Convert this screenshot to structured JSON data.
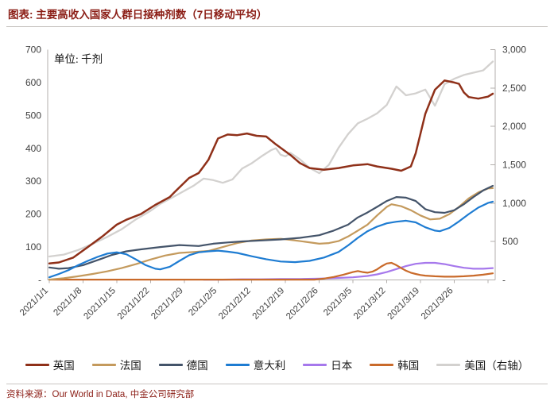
{
  "header": {
    "title": "图表: 主要高收入国家人群日接种剂数（7日移动平均）"
  },
  "footer": {
    "source": "资料来源：Our World in Data, 中金公司研究部"
  },
  "chart_data": {
    "type": "line",
    "title": "主要高收入国家人群日接种剂数（7日移动平均）",
    "unit_label": "单位: 千剂",
    "left_axis": {
      "unit": "千剂 (thousand doses)",
      "min": 0,
      "max": 700,
      "tick_values": [
        700,
        600,
        500,
        400,
        300,
        200,
        100,
        0
      ],
      "tick_labels": [
        "700",
        "600",
        "500",
        "400",
        "300",
        "200",
        "100",
        "-"
      ]
    },
    "right_axis": {
      "unit": "千剂 (thousand doses, 美国)",
      "min": 0,
      "max": 3000,
      "tick_values": [
        3000,
        2500,
        2000,
        1500,
        1000,
        500,
        0
      ],
      "tick_labels": [
        "3,000",
        "2,500",
        "2,000",
        "1,500",
        "1,000",
        "500",
        "-"
      ]
    },
    "x_axis": {
      "start_date": "2021/1/1",
      "range_days": [
        0,
        92
      ],
      "tick_step_days": 7,
      "tick_labels": [
        "2021/1/1",
        "2021/1/8",
        "2021/1/15",
        "2021/1/22",
        "2021/1/29",
        "2021/2/5",
        "2021/2/12",
        "2021/2/19",
        "2021/2/26",
        "2021/3/5",
        "2021/3/12",
        "2021/3/19",
        "2021/3/26"
      ]
    },
    "grid": "off",
    "legend_position": "bottom",
    "series": [
      {
        "key": "uk",
        "name": "英国",
        "axis": "left",
        "color": "#8f3019",
        "width": 2.5,
        "points": [
          [
            0,
            50
          ],
          [
            2,
            53
          ],
          [
            5,
            68
          ],
          [
            8,
            100
          ],
          [
            11,
            132
          ],
          [
            14,
            168
          ],
          [
            16,
            183
          ],
          [
            19,
            200
          ],
          [
            22,
            228
          ],
          [
            25,
            252
          ],
          [
            26,
            267
          ],
          [
            29,
            310
          ],
          [
            31,
            325
          ],
          [
            33,
            365
          ],
          [
            35,
            430
          ],
          [
            37,
            442
          ],
          [
            39,
            440
          ],
          [
            41,
            445
          ],
          [
            43,
            438
          ],
          [
            45,
            436
          ],
          [
            47,
            412
          ],
          [
            50,
            380
          ],
          [
            52,
            355
          ],
          [
            54,
            340
          ],
          [
            57,
            335
          ],
          [
            60,
            340
          ],
          [
            63,
            348
          ],
          [
            66,
            352
          ],
          [
            68,
            345
          ],
          [
            71,
            338
          ],
          [
            73,
            332
          ],
          [
            75,
            345
          ],
          [
            76,
            385
          ],
          [
            78,
            505
          ],
          [
            80,
            578
          ],
          [
            82,
            606
          ],
          [
            84,
            600
          ],
          [
            85,
            596
          ],
          [
            86,
            570
          ],
          [
            87,
            556
          ],
          [
            89,
            551
          ],
          [
            91,
            557
          ],
          [
            92,
            566
          ]
        ]
      },
      {
        "key": "france",
        "name": "法国",
        "axis": "left",
        "color": "#c49a5d",
        "width": 2.2,
        "points": [
          [
            0,
            1
          ],
          [
            3,
            5
          ],
          [
            6,
            11
          ],
          [
            9,
            18
          ],
          [
            12,
            26
          ],
          [
            15,
            36
          ],
          [
            18,
            48
          ],
          [
            21,
            62
          ],
          [
            24,
            74
          ],
          [
            27,
            82
          ],
          [
            30,
            85
          ],
          [
            33,
            88
          ],
          [
            36,
            100
          ],
          [
            39,
            112
          ],
          [
            42,
            120
          ],
          [
            45,
            123
          ],
          [
            48,
            125
          ],
          [
            50,
            122
          ],
          [
            53,
            116
          ],
          [
            56,
            110
          ],
          [
            58,
            112
          ],
          [
            60,
            118
          ],
          [
            62,
            132
          ],
          [
            64,
            150
          ],
          [
            66,
            168
          ],
          [
            68,
            196
          ],
          [
            70,
            222
          ],
          [
            71,
            230
          ],
          [
            73,
            224
          ],
          [
            75,
            212
          ],
          [
            77,
            196
          ],
          [
            79,
            184
          ],
          [
            81,
            186
          ],
          [
            83,
            200
          ],
          [
            85,
            222
          ],
          [
            87,
            248
          ],
          [
            89,
            266
          ],
          [
            91,
            278
          ],
          [
            92,
            279
          ]
        ]
      },
      {
        "key": "germany",
        "name": "德国",
        "axis": "left",
        "color": "#44546a",
        "width": 2.2,
        "points": [
          [
            0,
            38
          ],
          [
            2,
            34
          ],
          [
            4,
            36
          ],
          [
            7,
            45
          ],
          [
            10,
            60
          ],
          [
            13,
            76
          ],
          [
            16,
            87
          ],
          [
            19,
            93
          ],
          [
            23,
            100
          ],
          [
            27,
            106
          ],
          [
            31,
            103
          ],
          [
            34,
            110
          ],
          [
            37,
            114
          ],
          [
            40,
            117
          ],
          [
            44,
            120
          ],
          [
            48,
            123
          ],
          [
            52,
            128
          ],
          [
            56,
            136
          ],
          [
            59,
            150
          ],
          [
            62,
            168
          ],
          [
            64,
            190
          ],
          [
            66,
            205
          ],
          [
            68,
            222
          ],
          [
            70,
            240
          ],
          [
            72,
            252
          ],
          [
            74,
            250
          ],
          [
            76,
            240
          ],
          [
            78,
            215
          ],
          [
            80,
            206
          ],
          [
            82,
            204
          ],
          [
            84,
            212
          ],
          [
            86,
            230
          ],
          [
            88,
            252
          ],
          [
            90,
            272
          ],
          [
            92,
            286
          ]
        ]
      },
      {
        "key": "italy",
        "name": "意大利",
        "axis": "left",
        "color": "#1e7cd2",
        "width": 2.2,
        "points": [
          [
            0,
            8
          ],
          [
            2,
            18
          ],
          [
            4,
            30
          ],
          [
            6,
            45
          ],
          [
            8,
            58
          ],
          [
            10,
            70
          ],
          [
            12,
            80
          ],
          [
            14,
            84
          ],
          [
            16,
            78
          ],
          [
            18,
            62
          ],
          [
            20,
            45
          ],
          [
            22,
            34
          ],
          [
            23,
            32
          ],
          [
            25,
            40
          ],
          [
            27,
            58
          ],
          [
            29,
            75
          ],
          [
            31,
            84
          ],
          [
            33,
            87
          ],
          [
            35,
            89
          ],
          [
            37,
            86
          ],
          [
            39,
            82
          ],
          [
            42,
            72
          ],
          [
            45,
            63
          ],
          [
            48,
            56
          ],
          [
            51,
            54
          ],
          [
            54,
            58
          ],
          [
            57,
            68
          ],
          [
            60,
            85
          ],
          [
            62,
            105
          ],
          [
            64,
            128
          ],
          [
            66,
            148
          ],
          [
            68,
            162
          ],
          [
            70,
            172
          ],
          [
            72,
            177
          ],
          [
            74,
            180
          ],
          [
            76,
            175
          ],
          [
            78,
            160
          ],
          [
            80,
            150
          ],
          [
            81,
            148
          ],
          [
            83,
            158
          ],
          [
            85,
            178
          ],
          [
            87,
            200
          ],
          [
            89,
            220
          ],
          [
            91,
            234
          ],
          [
            92,
            238
          ]
        ]
      },
      {
        "key": "japan",
        "name": "日本",
        "axis": "left",
        "color": "#a678ec",
        "width": 2.2,
        "points": [
          [
            32,
            1
          ],
          [
            36,
            1
          ],
          [
            40,
            2
          ],
          [
            44,
            2
          ],
          [
            48,
            3
          ],
          [
            52,
            3
          ],
          [
            56,
            4
          ],
          [
            60,
            6
          ],
          [
            63,
            8
          ],
          [
            66,
            12
          ],
          [
            68,
            17
          ],
          [
            70,
            24
          ],
          [
            72,
            33
          ],
          [
            74,
            42
          ],
          [
            76,
            49
          ],
          [
            78,
            52
          ],
          [
            80,
            52
          ],
          [
            82,
            48
          ],
          [
            84,
            42
          ],
          [
            86,
            37
          ],
          [
            88,
            34
          ],
          [
            90,
            34
          ],
          [
            92,
            36
          ]
        ]
      },
      {
        "key": "korea",
        "name": "韩国",
        "axis": "left",
        "color": "#c96a2a",
        "width": 2.2,
        "points": [
          [
            0,
            1
          ],
          [
            8,
            1
          ],
          [
            16,
            1
          ],
          [
            24,
            1
          ],
          [
            32,
            1
          ],
          [
            40,
            1
          ],
          [
            48,
            1
          ],
          [
            55,
            1
          ],
          [
            57,
            4
          ],
          [
            59,
            9
          ],
          [
            61,
            16
          ],
          [
            63,
            24
          ],
          [
            64,
            27
          ],
          [
            65,
            24
          ],
          [
            66,
            22
          ],
          [
            67,
            25
          ],
          [
            68,
            32
          ],
          [
            69,
            42
          ],
          [
            70,
            50
          ],
          [
            71,
            52
          ],
          [
            72,
            45
          ],
          [
            73,
            36
          ],
          [
            74,
            28
          ],
          [
            75,
            22
          ],
          [
            76,
            18
          ],
          [
            77,
            15
          ],
          [
            78,
            13
          ],
          [
            80,
            11
          ],
          [
            82,
            10
          ],
          [
            84,
            10
          ],
          [
            86,
            11
          ],
          [
            88,
            13
          ],
          [
            90,
            16
          ],
          [
            92,
            20
          ]
        ]
      },
      {
        "key": "us",
        "name": "美国（右轴）",
        "axis": "right",
        "color": "#d3d1cf",
        "width": 2.3,
        "points": [
          [
            0,
            305
          ],
          [
            3,
            330
          ],
          [
            6,
            390
          ],
          [
            9,
            470
          ],
          [
            12,
            560
          ],
          [
            15,
            660
          ],
          [
            18,
            790
          ],
          [
            21,
            900
          ],
          [
            23,
            990
          ],
          [
            26,
            1090
          ],
          [
            28,
            1160
          ],
          [
            30,
            1230
          ],
          [
            32,
            1320
          ],
          [
            34,
            1300
          ],
          [
            36,
            1265
          ],
          [
            38,
            1310
          ],
          [
            40,
            1450
          ],
          [
            42,
            1520
          ],
          [
            44,
            1610
          ],
          [
            46,
            1690
          ],
          [
            47,
            1715
          ],
          [
            48,
            1630
          ],
          [
            49,
            1610
          ],
          [
            50,
            1655
          ],
          [
            52,
            1570
          ],
          [
            54,
            1460
          ],
          [
            56,
            1390
          ],
          [
            58,
            1500
          ],
          [
            60,
            1720
          ],
          [
            62,
            1900
          ],
          [
            64,
            2040
          ],
          [
            66,
            2100
          ],
          [
            68,
            2170
          ],
          [
            70,
            2280
          ],
          [
            72,
            2520
          ],
          [
            74,
            2405
          ],
          [
            76,
            2430
          ],
          [
            78,
            2480
          ],
          [
            80,
            2270
          ],
          [
            82,
            2550
          ],
          [
            84,
            2620
          ],
          [
            86,
            2670
          ],
          [
            88,
            2700
          ],
          [
            90,
            2730
          ],
          [
            92,
            2845
          ]
        ]
      }
    ],
    "colors": {
      "title_red": "#8b1d15",
      "axis_line": "#b3afac",
      "axis_text": "#404040"
    }
  }
}
